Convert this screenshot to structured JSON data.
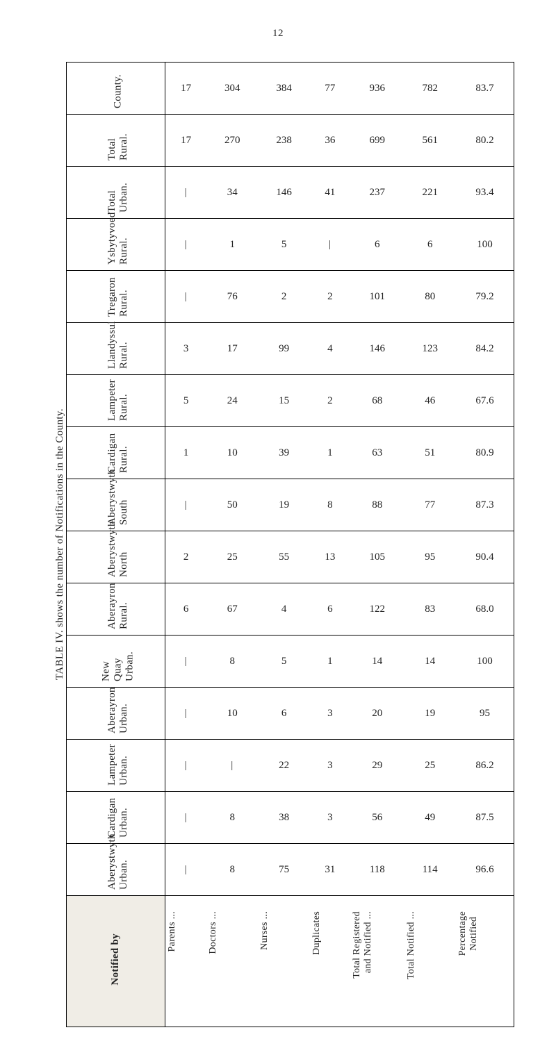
{
  "page_number": "12",
  "caption": "TABLE IV. shows the number of Notifications in the County.",
  "notified_by": "Notified by",
  "rows": [
    {
      "label": "County.",
      "cells": [
        "17",
        "304",
        "384",
        "77",
        "936",
        "782",
        "83.7"
      ]
    },
    {
      "label": "Total Rural.",
      "cells": [
        "17",
        "270",
        "238",
        "36",
        "699",
        "561",
        "80.2"
      ]
    },
    {
      "label": "Total Urban.",
      "cells": [
        "|",
        "34",
        "146",
        "41",
        "237",
        "221",
        "93.4"
      ]
    },
    {
      "label": "Ysbytyvoed Rural.",
      "cells": [
        "|",
        "1",
        "5",
        "|",
        "6",
        "6",
        "100"
      ]
    },
    {
      "label": "Tregaron Rural.",
      "cells": [
        "|",
        "76",
        "2",
        "2",
        "101",
        "80",
        "79.2"
      ]
    },
    {
      "label": "Llandyssul Rural.",
      "cells": [
        "3",
        "17",
        "99",
        "4",
        "146",
        "123",
        "84.2"
      ]
    },
    {
      "label": "Lampeter Rural.",
      "cells": [
        "5",
        "24",
        "15",
        "2",
        "68",
        "46",
        "67.6"
      ]
    },
    {
      "label": "Cardigan Rural.",
      "cells": [
        "1",
        "10",
        "39",
        "1",
        "63",
        "51",
        "80.9"
      ]
    },
    {
      "label": "Aberystwyth South",
      "cells": [
        "|",
        "50",
        "19",
        "8",
        "88",
        "77",
        "87.3"
      ]
    },
    {
      "label": "Aberystwyth North",
      "cells": [
        "2",
        "25",
        "55",
        "13",
        "105",
        "95",
        "90.4"
      ]
    },
    {
      "label": "Aberayron Rural.",
      "cells": [
        "6",
        "67",
        "4",
        "6",
        "122",
        "83",
        "68.0"
      ]
    },
    {
      "label": "New Quay Urban.",
      "cells": [
        "|",
        "8",
        "5",
        "1",
        "14",
        "14",
        "100"
      ]
    },
    {
      "label": "Aberayron Urban.",
      "cells": [
        "|",
        "10",
        "6",
        "3",
        "20",
        "19",
        "95"
      ]
    },
    {
      "label": "Lampeter Urban.",
      "cells": [
        "|",
        "|",
        "22",
        "3",
        "29",
        "25",
        "86.2"
      ]
    },
    {
      "label": "Cardigan Urban.",
      "cells": [
        "|",
        "8",
        "38",
        "3",
        "56",
        "49",
        "87.5"
      ]
    },
    {
      "label": "Aberystwyth Urban.",
      "cells": [
        "|",
        "8",
        "75",
        "31",
        "118",
        "114",
        "96.6"
      ]
    }
  ],
  "cols": [
    "Parents ...",
    "Doctors ...",
    "Nurses ...",
    "Duplicates",
    "Total Registered\n  and Notified ...",
    "Total Notified ...",
    "Percentage\n  Notified"
  ],
  "group_breaks": [
    3,
    8
  ],
  "styles": {
    "bg": "#ffffff",
    "stub_bg": "#f0ede6",
    "font": "Georgia, 'Century Schoolbook', serif",
    "border_color": "#000000",
    "cell_fontsize": 15,
    "header_fontsize": 15,
    "colheader_fontsize": 14
  }
}
